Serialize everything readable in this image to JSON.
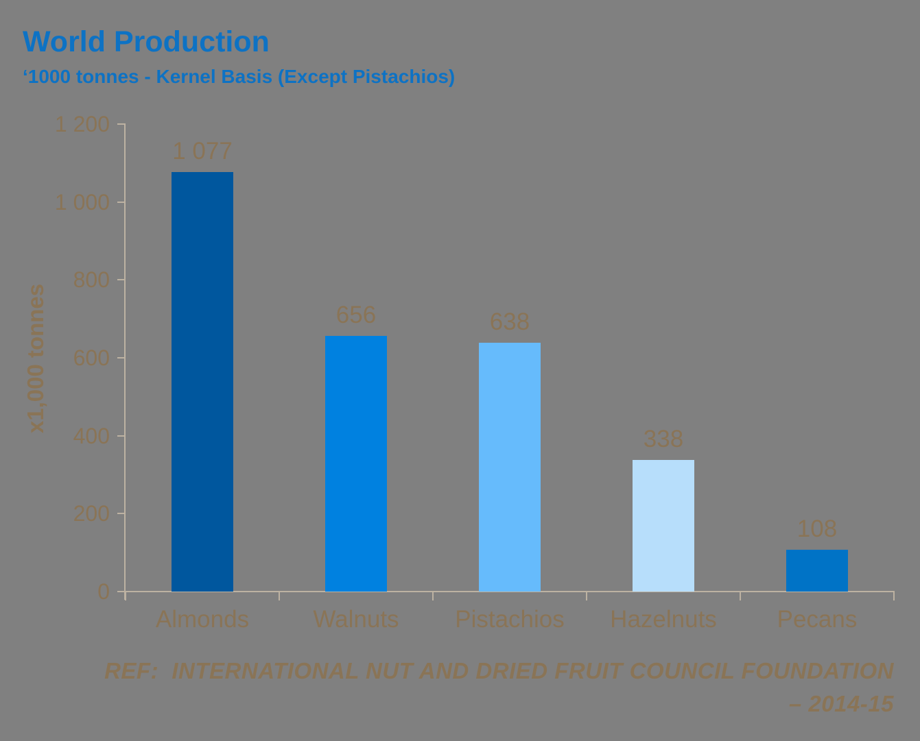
{
  "header": {
    "title": "World Production",
    "subtitle": "‘1000 tonnes - Kernel Basis (Except Pistachios)"
  },
  "footer": {
    "ref_line": "REF:  INTERNATIONAL NUT AND DRIED FRUIT COUNCIL FOUNDATION",
    "period_line": "– 2014-15"
  },
  "chart_data": {
    "type": "bar",
    "title": "World Production",
    "subtitle": "‘1000 tonnes - Kernel Basis (Except Pistachios)",
    "categories": [
      "Almonds",
      "Walnuts",
      "Pistachios",
      "Hazelnuts",
      "Pecans"
    ],
    "values": [
      1077,
      656,
      638,
      338,
      108
    ],
    "value_labels": [
      "1 077",
      "656",
      "638",
      "338",
      "108"
    ],
    "bar_colors": [
      "#00579E",
      "#0081E0",
      "#66BBFC",
      "#B7DEFB",
      "#0073C6"
    ],
    "xlabel": "",
    "ylabel": "x1,000 tonnes",
    "ylim": [
      0,
      1200
    ],
    "yticks": [
      0,
      200,
      400,
      600,
      800,
      1000,
      1200
    ],
    "ytick_labels": [
      "0",
      "200",
      "400",
      "600",
      "800",
      "1 000",
      "1 200"
    ],
    "grid": false,
    "legend": false,
    "source_note": "REF:  INTERNATIONAL NUT AND DRIED FRUIT COUNCIL FOUNDATION – 2014-15",
    "colors": {
      "background": "#808080",
      "title_blue": "#0D72C4",
      "text_brown": "#8A7456",
      "axis_line": "#BDB2A2"
    }
  }
}
